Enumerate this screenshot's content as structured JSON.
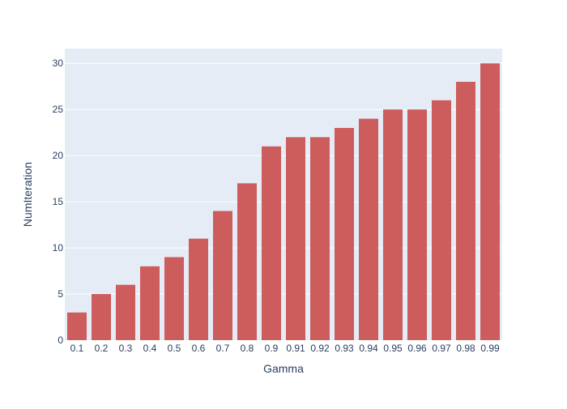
{
  "chart_data": {
    "type": "bar",
    "categories": [
      "0.1",
      "0.2",
      "0.3",
      "0.4",
      "0.5",
      "0.6",
      "0.7",
      "0.8",
      "0.9",
      "0.91",
      "0.92",
      "0.93",
      "0.94",
      "0.95",
      "0.96",
      "0.97",
      "0.98",
      "0.99"
    ],
    "values": [
      3,
      5,
      6,
      8,
      9,
      11,
      14,
      17,
      21,
      22,
      22,
      23,
      24,
      25,
      25,
      26,
      28,
      30
    ],
    "title": "",
    "xlabel": "Gamma",
    "ylabel": "NumIteration",
    "ylim": [
      0,
      31.6
    ],
    "yticks": [
      0,
      5,
      10,
      15,
      20,
      25,
      30
    ],
    "grid": true,
    "legend": "none",
    "colors": {
      "bar": "#cd5c5c",
      "plot_bg": "#e5ecf6",
      "grid": "#ffffff",
      "text": "#2a3f5f"
    }
  }
}
